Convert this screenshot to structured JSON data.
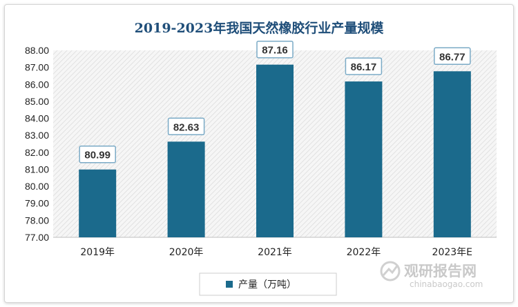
{
  "chart_data": {
    "type": "bar",
    "title": "2019-2023年我国天然橡胶行业产量规模",
    "categories": [
      "2019年",
      "2020年",
      "2021年",
      "2022年",
      "2023年E"
    ],
    "series": [
      {
        "name": "产量（万吨）",
        "values": [
          80.99,
          82.63,
          87.16,
          86.17,
          86.77
        ]
      }
    ],
    "data_labels": [
      "80.99",
      "82.63",
      "87.16",
      "86.17",
      "86.77"
    ],
    "ylim": [
      77.0,
      88.0
    ],
    "ytick_labels": [
      "77.00",
      "78.00",
      "79.00",
      "80.00",
      "81.00",
      "82.00",
      "83.00",
      "84.00",
      "85.00",
      "86.00",
      "87.00",
      "88.00"
    ],
    "xlabel": "",
    "ylabel": "",
    "grid": false,
    "legend_position": "bottom",
    "plot_background": "hatched-gray",
    "colors": {
      "bar": "#1b6a8c",
      "title": "#1f4e79",
      "label_border": "#7aaac6"
    }
  },
  "watermark": {
    "brand": "观研报告网",
    "url": "chinabaogao.com"
  }
}
